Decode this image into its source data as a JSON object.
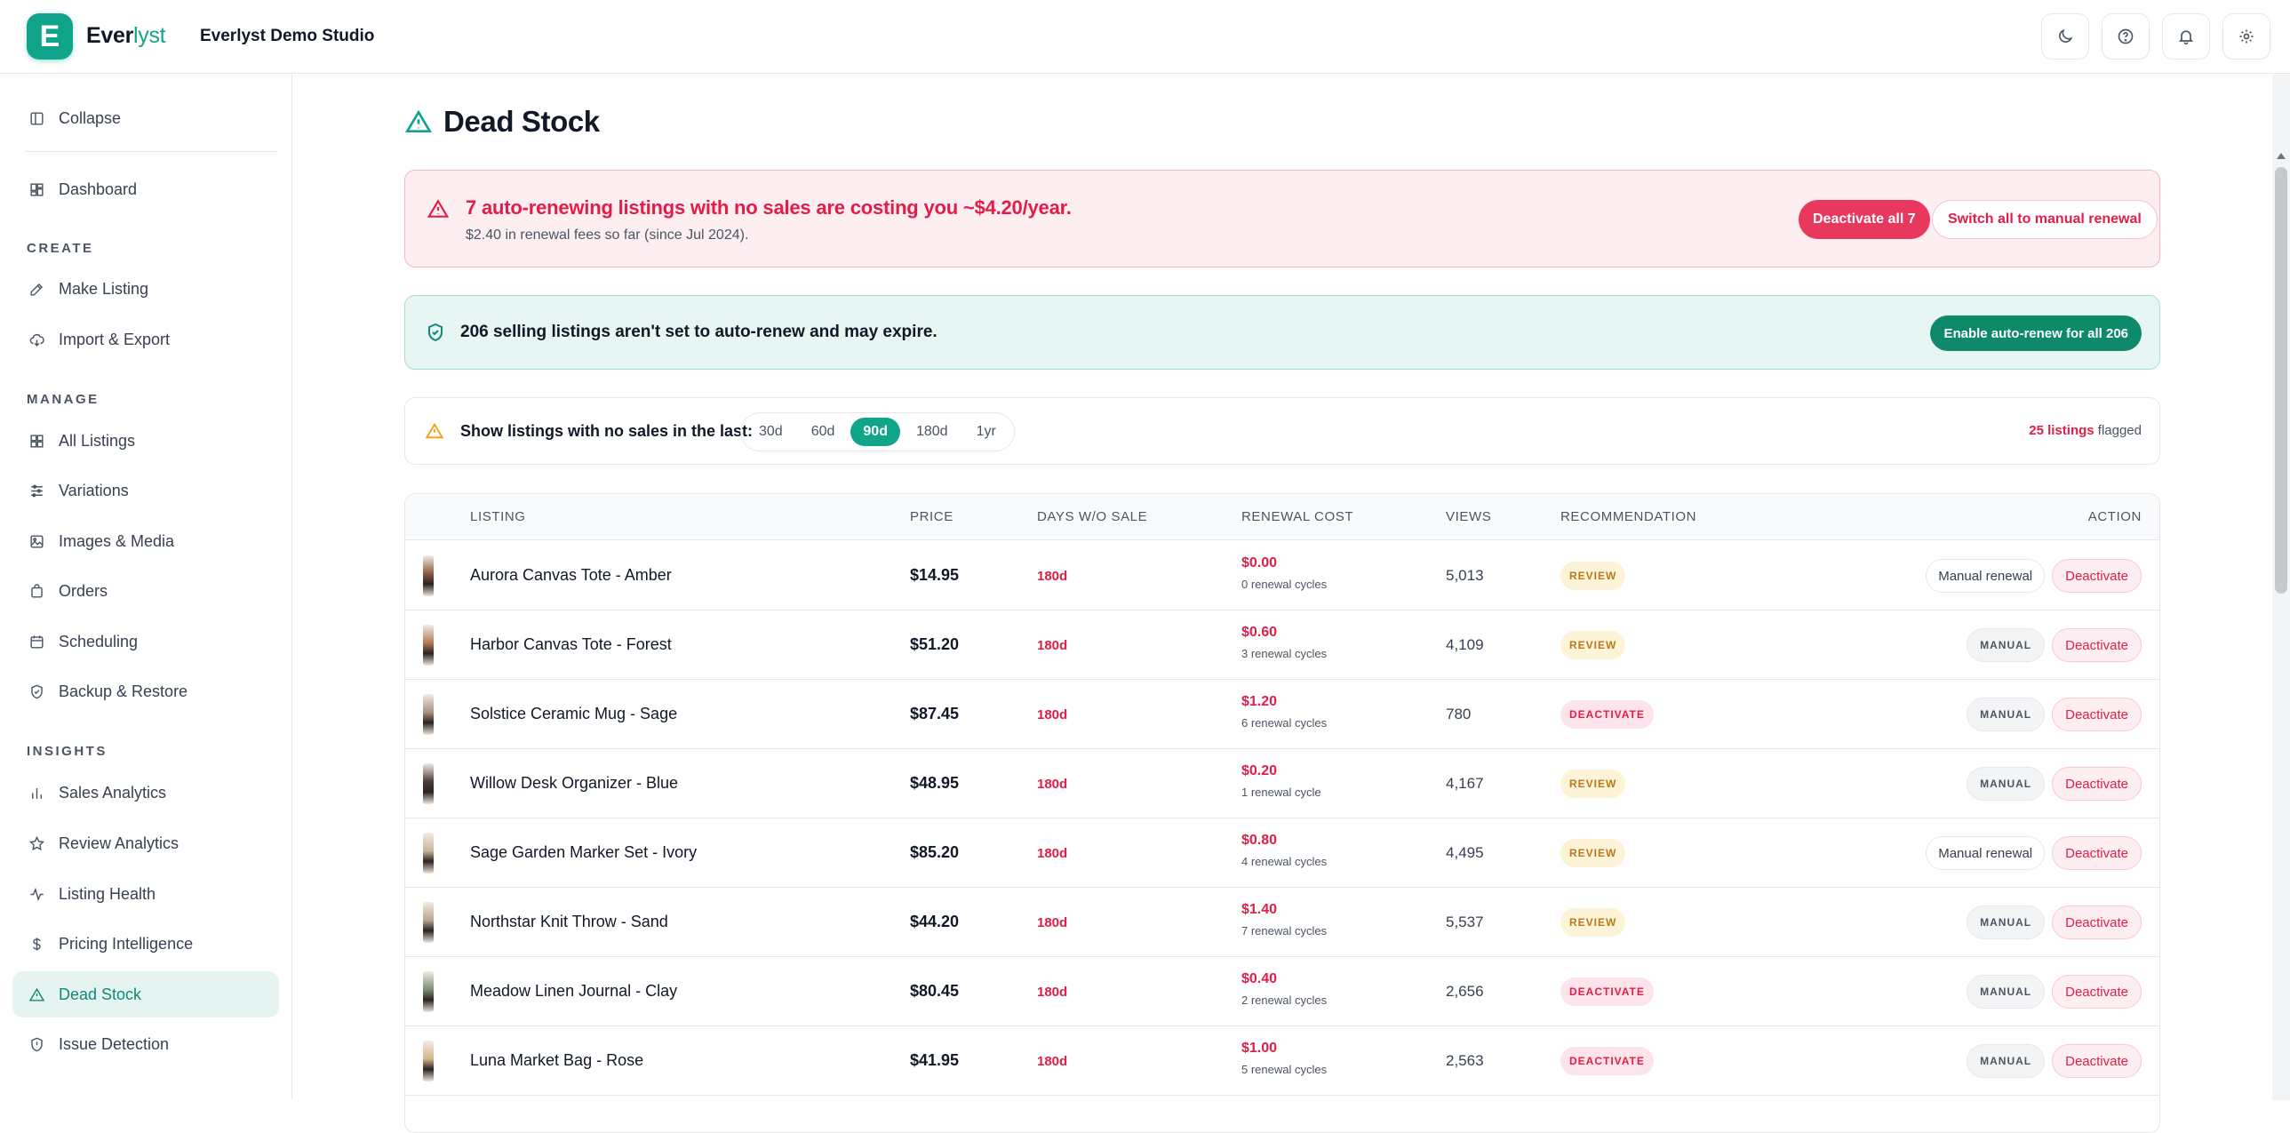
{
  "app": {
    "logo_letter": "E",
    "brand_main": "Ever",
    "brand_accent": "lyst",
    "studio_name": "Everlyst Demo Studio",
    "accent_color": "#10a48a",
    "top_icons": [
      "moon-icon",
      "help-icon",
      "bell-icon",
      "settings-icon"
    ]
  },
  "sidebar": {
    "collapse_label": "Collapse",
    "dashboard_label": "Dashboard",
    "sections": {
      "create": "CREATE",
      "manage": "MANAGE",
      "insights": "INSIGHTS"
    },
    "create_items": [
      "Make Listing",
      "Import & Export"
    ],
    "manage_items": [
      "All Listings",
      "Variations",
      "Images & Media",
      "Orders",
      "Scheduling",
      "Backup & Restore"
    ],
    "insights_items": [
      "Sales Analytics",
      "Review Analytics",
      "Listing Health",
      "Pricing Intelligence",
      "Dead Stock",
      "Issue Detection"
    ],
    "active_item": "Dead Stock"
  },
  "page": {
    "title": "Dead Stock"
  },
  "cost_alert": {
    "headline": "7 auto-renewing listings with no sales are costing you ~$4.20/year.",
    "subtext": "$2.40 in renewal fees so far (since Jul 2024).",
    "primary_button": "Deactivate all 7",
    "secondary_button": "Switch all to manual renewal"
  },
  "renew_alert": {
    "headline": "206 selling listings aren't set to auto-renew and may expire.",
    "button": "Enable auto-renew for all 206"
  },
  "filter": {
    "label": "Show listings with no sales in the last:",
    "options": [
      "30d",
      "60d",
      "90d",
      "180d",
      "1yr"
    ],
    "selected": "90d",
    "flag_count": "25 listings",
    "flag_suffix": "flagged"
  },
  "table": {
    "headers": {
      "listing": "LISTING",
      "price": "PRICE",
      "days": "DAYS W/O SALE",
      "renewal_cost": "RENEWAL COST",
      "views": "VIEWS",
      "recommendation": "RECOMMENDATION",
      "action": "ACTION"
    },
    "rows": [
      {
        "name": "Aurora Canvas Tote - Amber",
        "price": "$14.95",
        "days": "180d",
        "cost": "$0.00",
        "cycles": "0 renewal cycles",
        "views": "5,013",
        "recommendation": "REVIEW",
        "rec_type": "review",
        "renewal_action": "Manual renewal",
        "renewal_style": "button",
        "deactivate": "Deactivate",
        "thumb_color": "#8a5a3c"
      },
      {
        "name": "Harbor Canvas Tote - Forest",
        "price": "$51.20",
        "days": "180d",
        "cost": "$0.60",
        "cycles": "3 renewal cycles",
        "views": "4,109",
        "recommendation": "REVIEW",
        "rec_type": "review",
        "renewal_action": "MANUAL",
        "renewal_style": "badge",
        "deactivate": "Deactivate",
        "thumb_color": "#b07a55"
      },
      {
        "name": "Solstice Ceramic Mug - Sage",
        "price": "$87.45",
        "days": "180d",
        "cost": "$1.20",
        "cycles": "6 renewal cycles",
        "views": "780",
        "recommendation": "DEACTIVATE",
        "rec_type": "deactivate",
        "renewal_action": "MANUAL",
        "renewal_style": "badge",
        "deactivate": "Deactivate",
        "thumb_color": "#a89180"
      },
      {
        "name": "Willow Desk Organizer - Blue",
        "price": "$48.95",
        "days": "180d",
        "cost": "$0.20",
        "cycles": "1 renewal cycle",
        "views": "4,167",
        "recommendation": "REVIEW",
        "rec_type": "review",
        "renewal_action": "MANUAL",
        "renewal_style": "badge",
        "deactivate": "Deactivate",
        "thumb_color": "#4a3a36"
      },
      {
        "name": "Sage Garden Marker Set - Ivory",
        "price": "$85.20",
        "days": "180d",
        "cost": "$0.80",
        "cycles": "4 renewal cycles",
        "views": "4,495",
        "recommendation": "REVIEW",
        "rec_type": "review",
        "renewal_action": "Manual renewal",
        "renewal_style": "button",
        "deactivate": "Deactivate",
        "thumb_color": "#c9b49a"
      },
      {
        "name": "Northstar Knit Throw - Sand",
        "price": "$44.20",
        "days": "180d",
        "cost": "$1.40",
        "cycles": "7 renewal cycles",
        "views": "5,537",
        "recommendation": "REVIEW",
        "rec_type": "review",
        "renewal_action": "MANUAL",
        "renewal_style": "badge",
        "deactivate": "Deactivate",
        "thumb_color": "#b9a58c"
      },
      {
        "name": "Meadow Linen Journal - Clay",
        "price": "$80.45",
        "days": "180d",
        "cost": "$0.40",
        "cycles": "2 renewal cycles",
        "views": "2,656",
        "recommendation": "DEACTIVATE",
        "rec_type": "deactivate",
        "renewal_action": "MANUAL",
        "renewal_style": "badge",
        "deactivate": "Deactivate",
        "thumb_color": "#7a8e74"
      },
      {
        "name": "Luna Market Bag - Rose",
        "price": "$41.95",
        "days": "180d",
        "cost": "$1.00",
        "cycles": "5 renewal cycles",
        "views": "2,563",
        "recommendation": "DEACTIVATE",
        "rec_type": "deactivate",
        "renewal_action": "MANUAL",
        "renewal_style": "badge",
        "deactivate": "Deactivate",
        "thumb_color": "#d6b48a"
      }
    ]
  }
}
